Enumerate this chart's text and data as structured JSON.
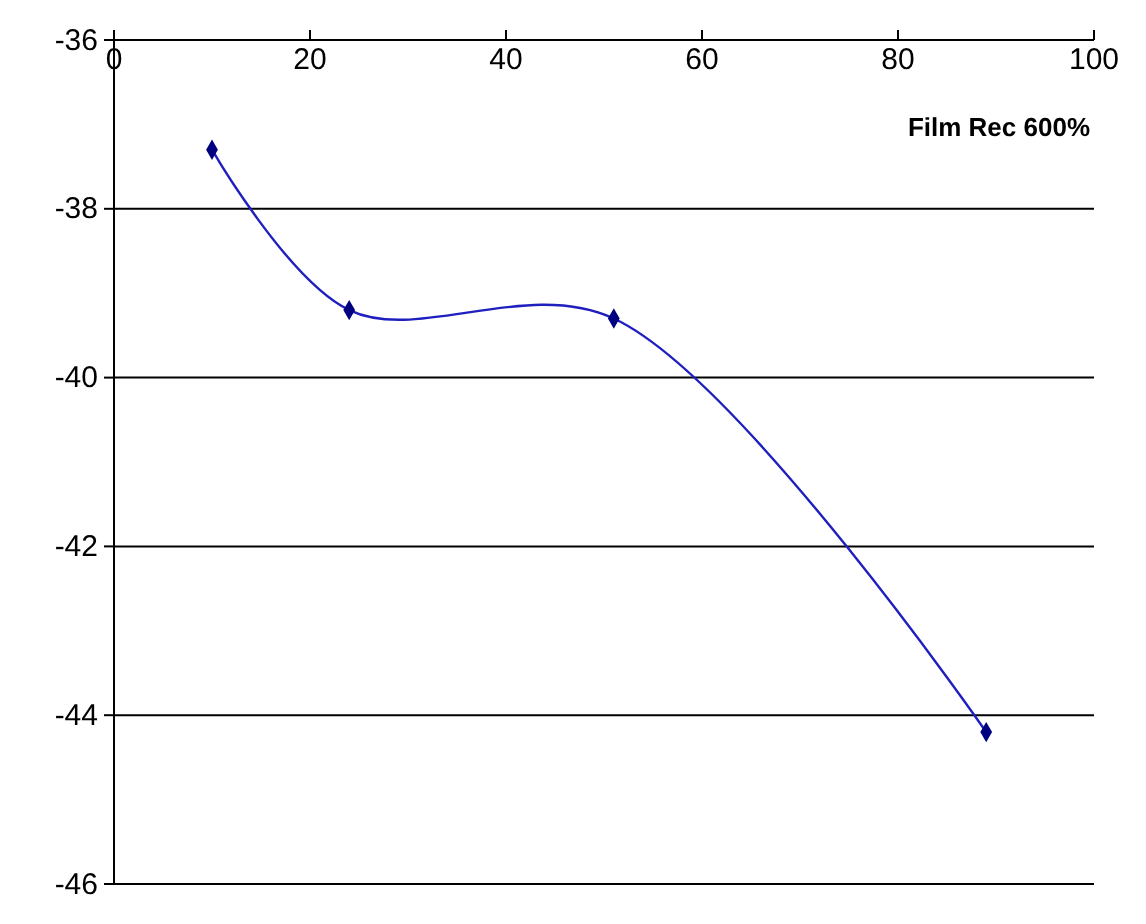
{
  "chart_data": {
    "type": "line",
    "xlabel": "Film Rec 600%",
    "x": [
      10,
      24,
      51,
      89
    ],
    "series": [
      {
        "color": "#1f1fbf",
        "values": [
          -37.3,
          -39.2,
          -39.3,
          -44.2
        ]
      }
    ],
    "xlim": [
      0,
      100
    ],
    "xticks": [
      0,
      20,
      40,
      60,
      80,
      100
    ],
    "ylim": [
      -46,
      -36
    ],
    "yticks": [
      -46,
      -44,
      -42,
      -40,
      -38,
      -36
    ],
    "grid": "y",
    "marker": "diamond",
    "line_style": "solid"
  }
}
